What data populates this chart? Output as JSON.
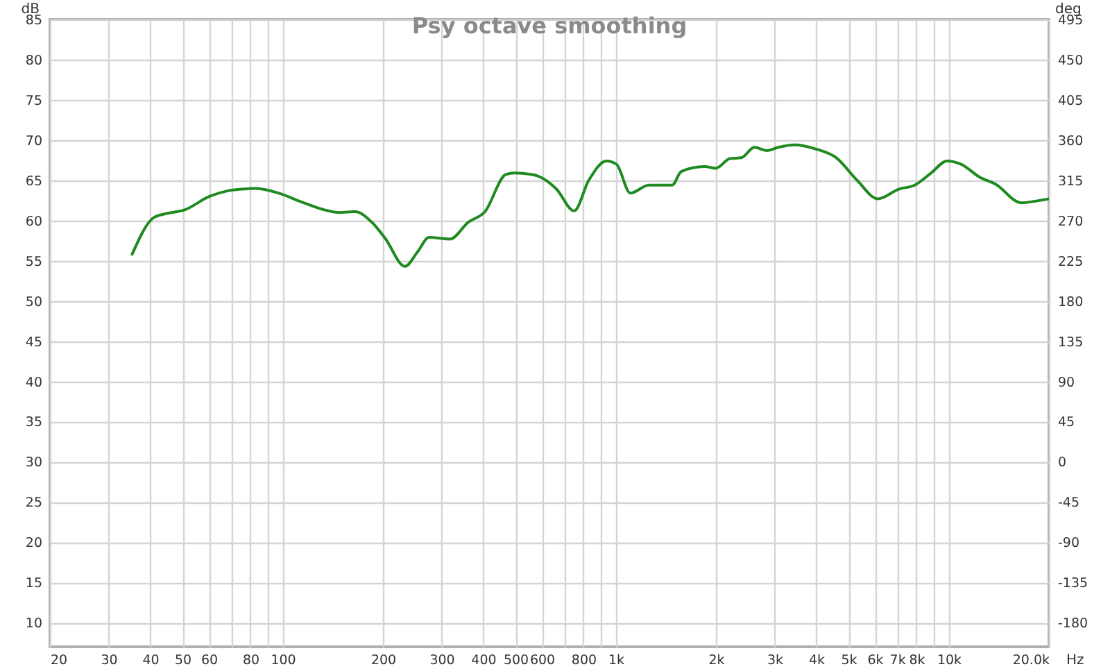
{
  "chart_data": {
    "type": "line",
    "title": "Psy octave smoothing",
    "xlabel": "Hz",
    "ylabel": "dB",
    "y2label": "deg",
    "log": "x",
    "grid": true,
    "marker": "none",
    "line_style": "solid",
    "xlim": [
      20,
      20000
    ],
    "ylim": [
      7,
      85
    ],
    "y2lim": [
      -207,
      495
    ],
    "xticks": [
      20,
      30,
      40,
      50,
      60,
      {
        "value": 70,
        "label": null
      },
      80,
      {
        "value": 90,
        "label": null
      },
      100,
      200,
      300,
      400,
      500,
      600,
      {
        "value": 700,
        "label": null
      },
      800,
      {
        "value": 900,
        "label": null
      },
      {
        "value": 1000,
        "label": "1k"
      },
      {
        "value": 2000,
        "label": "2k"
      },
      {
        "value": 3000,
        "label": "3k"
      },
      {
        "value": 4000,
        "label": "4k"
      },
      {
        "value": 5000,
        "label": "5k"
      },
      {
        "value": 6000,
        "label": "6k"
      },
      {
        "value": 7000,
        "label": "7k"
      },
      {
        "value": 8000,
        "label": "8k"
      },
      {
        "value": 9000,
        "label": null
      },
      {
        "value": 10000,
        "label": "10k"
      },
      {
        "value": 20000,
        "label": "20.0k"
      }
    ],
    "yticks": [
      10,
      15,
      20,
      25,
      30,
      35,
      40,
      45,
      50,
      55,
      60,
      65,
      70,
      75,
      80,
      85
    ],
    "y2ticks": [
      -180,
      -135,
      -90,
      -45,
      0,
      45,
      90,
      135,
      180,
      225,
      270,
      315,
      360,
      405,
      450,
      495
    ],
    "series": [
      {
        "color": "#1f8a1f",
        "x": [
          35.3,
          41.1,
          45.2,
          50.6,
          60.3,
          68.5,
          75.3,
          83,
          97.4,
          114,
          134,
          148,
          165,
          185,
          203,
          233,
          254,
          275,
          318,
          361,
          405,
          467,
          497,
          565,
          622,
          664,
          750,
          830,
          938,
          1005,
          1107,
          1258,
          1477,
          1574,
          1846,
          2000,
          2203,
          2385,
          2608,
          2845,
          3080,
          3444,
          3981,
          4596,
          5307,
          6126,
          7081,
          7910,
          8850,
          9890,
          10890,
          12380,
          13840,
          16520,
          18160,
          20000
        ],
        "values": [
          55.8,
          60.4,
          60.9,
          61.3,
          63.0,
          63.7,
          63.9,
          64.0,
          63.4,
          62.3,
          61.3,
          61.0,
          61.1,
          59.8,
          57.8,
          54.3,
          56.1,
          57.9,
          57.7,
          59.8,
          61.1,
          65.7,
          65.9,
          65.7,
          64.9,
          63.9,
          61.2,
          65.0,
          67.4,
          67.0,
          63.4,
          64.4,
          64.4,
          66.1,
          66.7,
          66.5,
          67.7,
          67.8,
          69.1,
          68.7,
          69.1,
          69.4,
          68.9,
          67.8,
          65.0,
          62.7,
          63.9,
          64.4,
          65.9,
          67.4,
          67.0,
          65.4,
          64.5,
          62.2,
          62.4,
          62.7
        ]
      }
    ]
  }
}
